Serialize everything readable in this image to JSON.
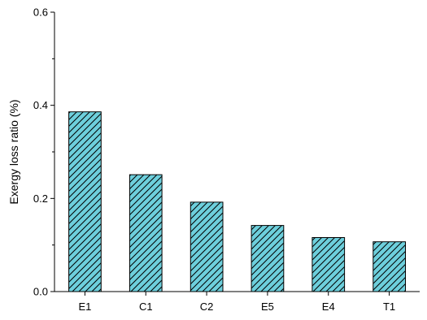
{
  "chart_data": {
    "type": "bar",
    "title": "",
    "xlabel": "",
    "ylabel": "Exergy loss ratio (%)",
    "categories": [
      "E1",
      "C1",
      "C2",
      "E5",
      "E4",
      "T1"
    ],
    "values": [
      0.386,
      0.251,
      0.192,
      0.142,
      0.116,
      0.107
    ],
    "ylim": [
      0,
      0.6
    ],
    "yticks": [
      "0.0",
      "0.2",
      "0.4",
      "0.6"
    ],
    "grid": false,
    "bar_fill": "#6dcfdc",
    "bar_hatch": "diagonal",
    "bar_edge": "#000000"
  }
}
